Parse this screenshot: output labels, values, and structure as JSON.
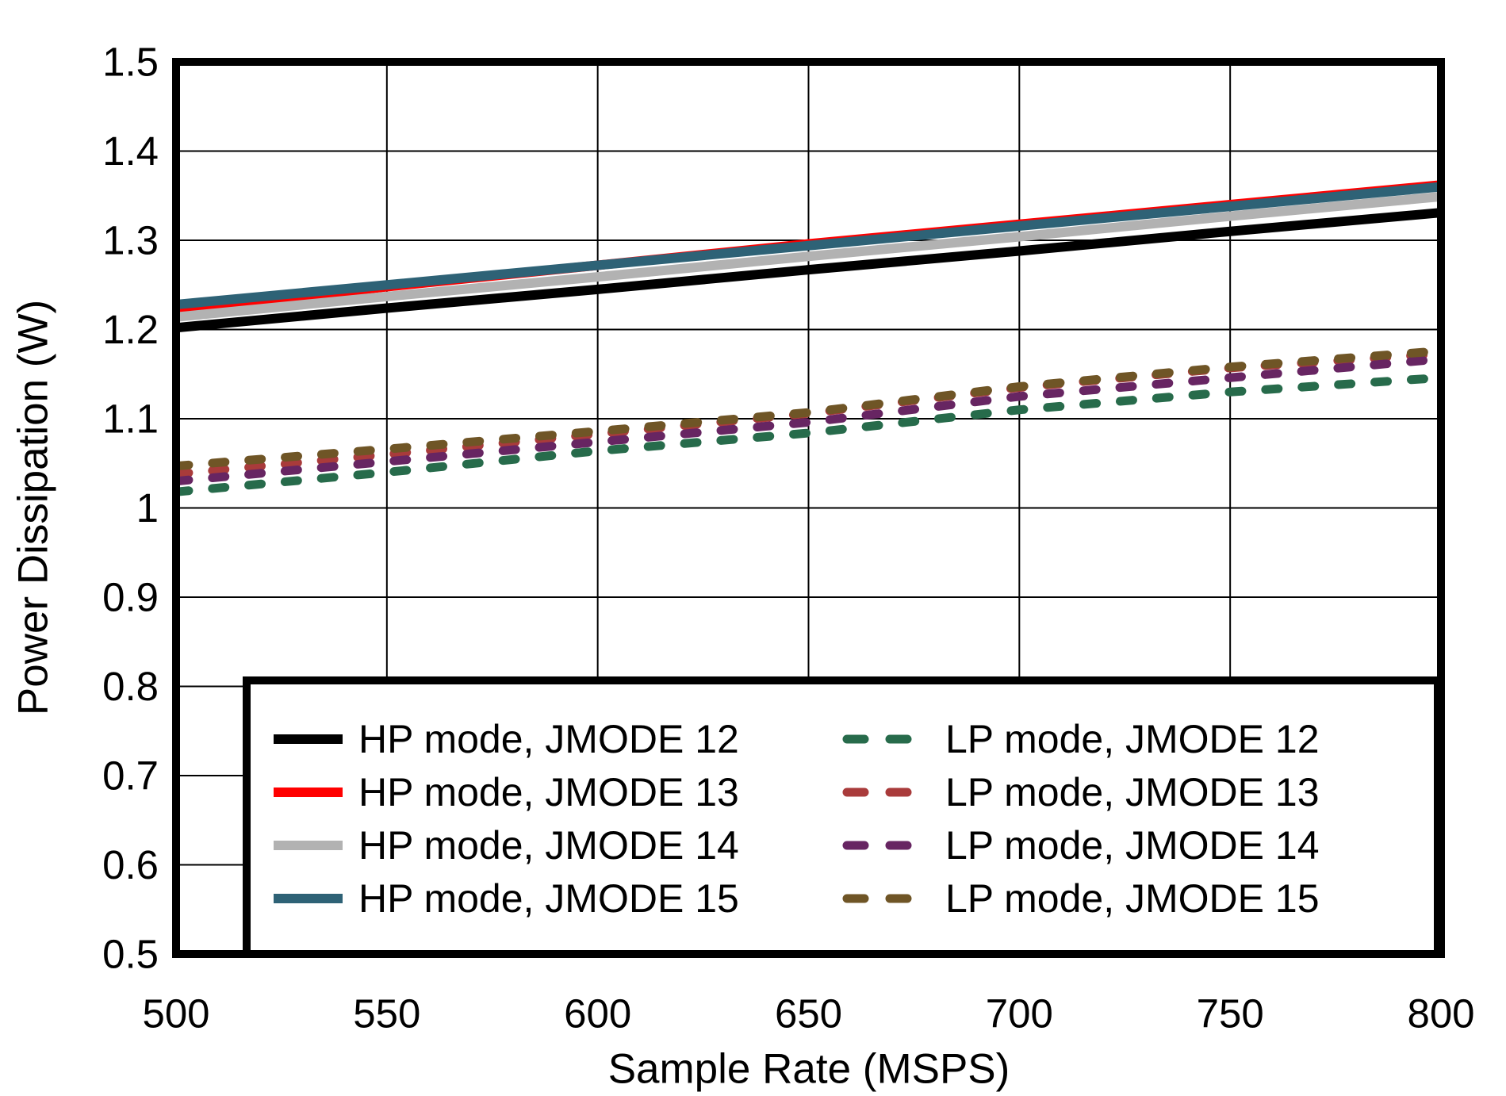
{
  "figure": {
    "background": "#ffffff",
    "axis_color": "#000000",
    "grid_color": "#000000",
    "legend_border_color": "#000000",
    "legend_background": "#ffffff"
  },
  "chart_data": {
    "type": "line",
    "title": "",
    "xlabel": "Sample Rate (MSPS)",
    "ylabel": "Power Dissipation (W)",
    "xlim": [
      500,
      800
    ],
    "ylim": [
      0.5,
      1.5
    ],
    "grid": true,
    "legend_position": "inside-bottom-right",
    "x_ticks": [
      500,
      550,
      600,
      650,
      700,
      750,
      800
    ],
    "x_tick_labels": [
      "500",
      "550",
      "600",
      "650",
      "700",
      "750",
      "800"
    ],
    "y_ticks": [
      0.5,
      0.6,
      0.7,
      0.8,
      0.9,
      1.0,
      1.1,
      1.2,
      1.3,
      1.4,
      1.5
    ],
    "y_tick_labels": [
      "0.5",
      "0.6",
      "0.7",
      "0.8",
      "0.9",
      "1",
      "1.1",
      "1.2",
      "1.3",
      "1.4",
      "1.5"
    ],
    "x": [
      500,
      550,
      600,
      650,
      700,
      750,
      800
    ],
    "series": [
      {
        "id": "hp-jmode-12",
        "label": "HP mode, JMODE 12",
        "mode": "HP",
        "jmode": 12,
        "color": "#000000",
        "style": "solid",
        "values": [
          1.202,
          1.224,
          1.245,
          1.267,
          1.288,
          1.31,
          1.331
        ],
        "legend_column": 0,
        "legend_row": 0,
        "z": 2
      },
      {
        "id": "hp-jmode-13",
        "label": "HP mode, JMODE 13",
        "mode": "HP",
        "jmode": 13,
        "color": "#ff0000",
        "style": "solid",
        "values": [
          1.22,
          1.248,
          1.272,
          1.296,
          1.318,
          1.34,
          1.362
        ],
        "legend_column": 0,
        "legend_row": 1,
        "z": 1
      },
      {
        "id": "hp-jmode-14",
        "label": "HP mode, JMODE 14",
        "mode": "HP",
        "jmode": 14,
        "color": "#b2b2b2",
        "style": "solid",
        "values": [
          1.214,
          1.237,
          1.259,
          1.282,
          1.304,
          1.327,
          1.349
        ],
        "legend_column": 0,
        "legend_row": 2,
        "z": 3
      },
      {
        "id": "hp-jmode-15",
        "label": "HP mode, JMODE 15",
        "mode": "HP",
        "jmode": 15,
        "color": "#2e6276",
        "style": "solid",
        "values": [
          1.228,
          1.25,
          1.272,
          1.294,
          1.316,
          1.338,
          1.36
        ],
        "legend_column": 0,
        "legend_row": 3,
        "z": 4
      },
      {
        "id": "lp-jmode-12",
        "label": "LP mode, JMODE 12",
        "mode": "LP",
        "jmode": 12,
        "color": "#276b4b",
        "style": "dashed",
        "values": [
          1.018,
          1.04,
          1.064,
          1.084,
          1.11,
          1.13,
          1.146
        ],
        "legend_column": 1,
        "legend_row": 0,
        "z": 6
      },
      {
        "id": "lp-jmode-13",
        "label": "LP mode, JMODE 13",
        "mode": "LP",
        "jmode": 13,
        "color": "#a93b3b",
        "style": "dashed",
        "values": [
          1.038,
          1.06,
          1.083,
          1.106,
          1.135,
          1.157,
          1.173
        ],
        "legend_column": 1,
        "legend_row": 1,
        "z": 5
      },
      {
        "id": "lp-jmode-14",
        "label": "LP mode, JMODE 14",
        "mode": "LP",
        "jmode": 14,
        "color": "#672562",
        "style": "dashed",
        "values": [
          1.03,
          1.052,
          1.074,
          1.096,
          1.125,
          1.146,
          1.167
        ],
        "legend_column": 1,
        "legend_row": 2,
        "z": 7
      },
      {
        "id": "lp-jmode-15",
        "label": "LP mode, JMODE 15",
        "mode": "LP",
        "jmode": 15,
        "color": "#6f5526",
        "style": "dashed",
        "values": [
          1.047,
          1.066,
          1.086,
          1.107,
          1.136,
          1.158,
          1.176
        ],
        "legend_column": 1,
        "legend_row": 3,
        "z": 8
      }
    ]
  }
}
